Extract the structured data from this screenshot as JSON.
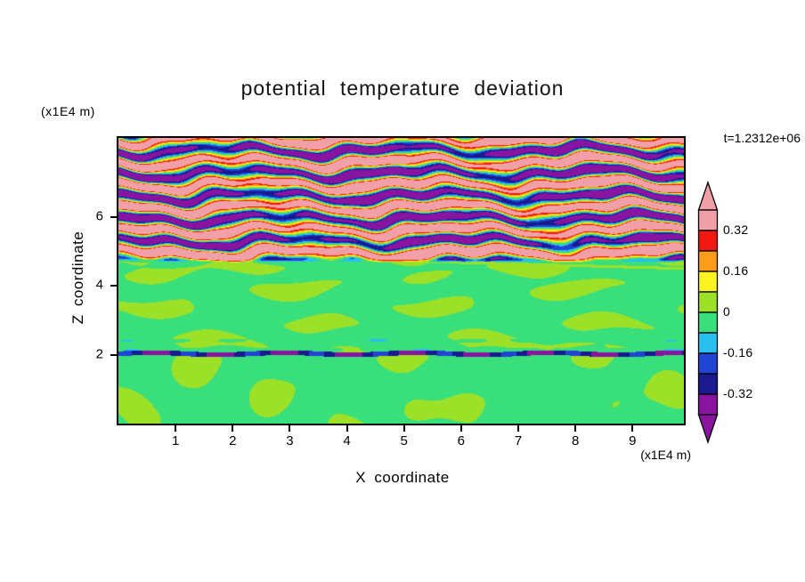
{
  "chart_data": {
    "type": "heatmap",
    "title": "potential temperature deviation",
    "xlabel": "X coordinate",
    "ylabel": "Z coordinate",
    "x_unit_label": "(x1E4 m)",
    "y_unit_label": "(x1E4 m)",
    "time_label": "t=1.2312e+06",
    "xlim": [
      0,
      9.9
    ],
    "ylim": [
      0,
      8.3
    ],
    "x_ticks": [
      1,
      2,
      3,
      4,
      5,
      6,
      7,
      8,
      9
    ],
    "y_ticks": [
      2,
      4,
      6
    ],
    "grid": false,
    "legend_position": "right-colorbar",
    "levels": [
      -0.4,
      -0.32,
      -0.24,
      -0.16,
      -0.08,
      0,
      0.08,
      0.16,
      0.24,
      0.32,
      0.4
    ],
    "colorbar_labels": [
      "0.32",
      "0.16",
      "0",
      "-0.16",
      "-0.32"
    ],
    "colors": {
      "below_arrow": "#8814a0",
      "segments_low_to_high": [
        "#8814a0",
        "#1a1a90",
        "#2244d4",
        "#28c0f0",
        "#38df7a",
        "#9ce028",
        "#fcf320",
        "#ff9c1c",
        "#f01810",
        "#f2a0a8"
      ],
      "above_arrow": "#f2a0a8",
      "frame": "#000000",
      "text": "#000000"
    },
    "regions": [
      {
        "name": "upper_stratified_layer",
        "z_range": [
          4.8,
          8.3
        ],
        "description": "Strongly layered gravity-wave billows: alternating quasi-horizontal undulating bands with deviation above +0.32 (pink) and below -0.32 (purple), separated by thin red/orange/yellow and cyan/blue/navy filaments that braid and pinch in x; near the layer base the pattern is warm-shifted (more pink/red)."
      },
      {
        "name": "mid_layer",
        "z_range": [
          2.1,
          4.8
        ],
        "description": "Weak deviations near zero: spring-green background (-0.08 to 0) with elongated horizontal yellow-green streaks (0 to +0.08) and a faint thin streak slanting just below the wave layer."
      },
      {
        "name": "interface_line",
        "z_range": [
          1.95,
          2.1
        ],
        "description": "Thin continuous dark line of strong negative deviation (~ -0.3, navy/blue) spanning the full width of the domain."
      },
      {
        "name": "lower_convective_layer",
        "z_range": [
          0,
          1.95
        ],
        "description": "Spring-green background with large rounded yellow-green plume blobs (0 to +0.08)."
      }
    ],
    "field_model": {
      "strat_base": 4.8,
      "strat_band_wavelength": 0.66,
      "strat_amplitude": 0.5,
      "strat_amp_modulation": 0.14,
      "strat_warm_offset_base": 0.04,
      "interface_z": 2.03,
      "interface_halfwidth": 0.07,
      "interface_value": -0.3,
      "mid_base_value": -0.015,
      "mid_blob_amplitude": 0.052,
      "lower_base_value": -0.02,
      "lower_blob_amplitude": 0.055
    }
  }
}
